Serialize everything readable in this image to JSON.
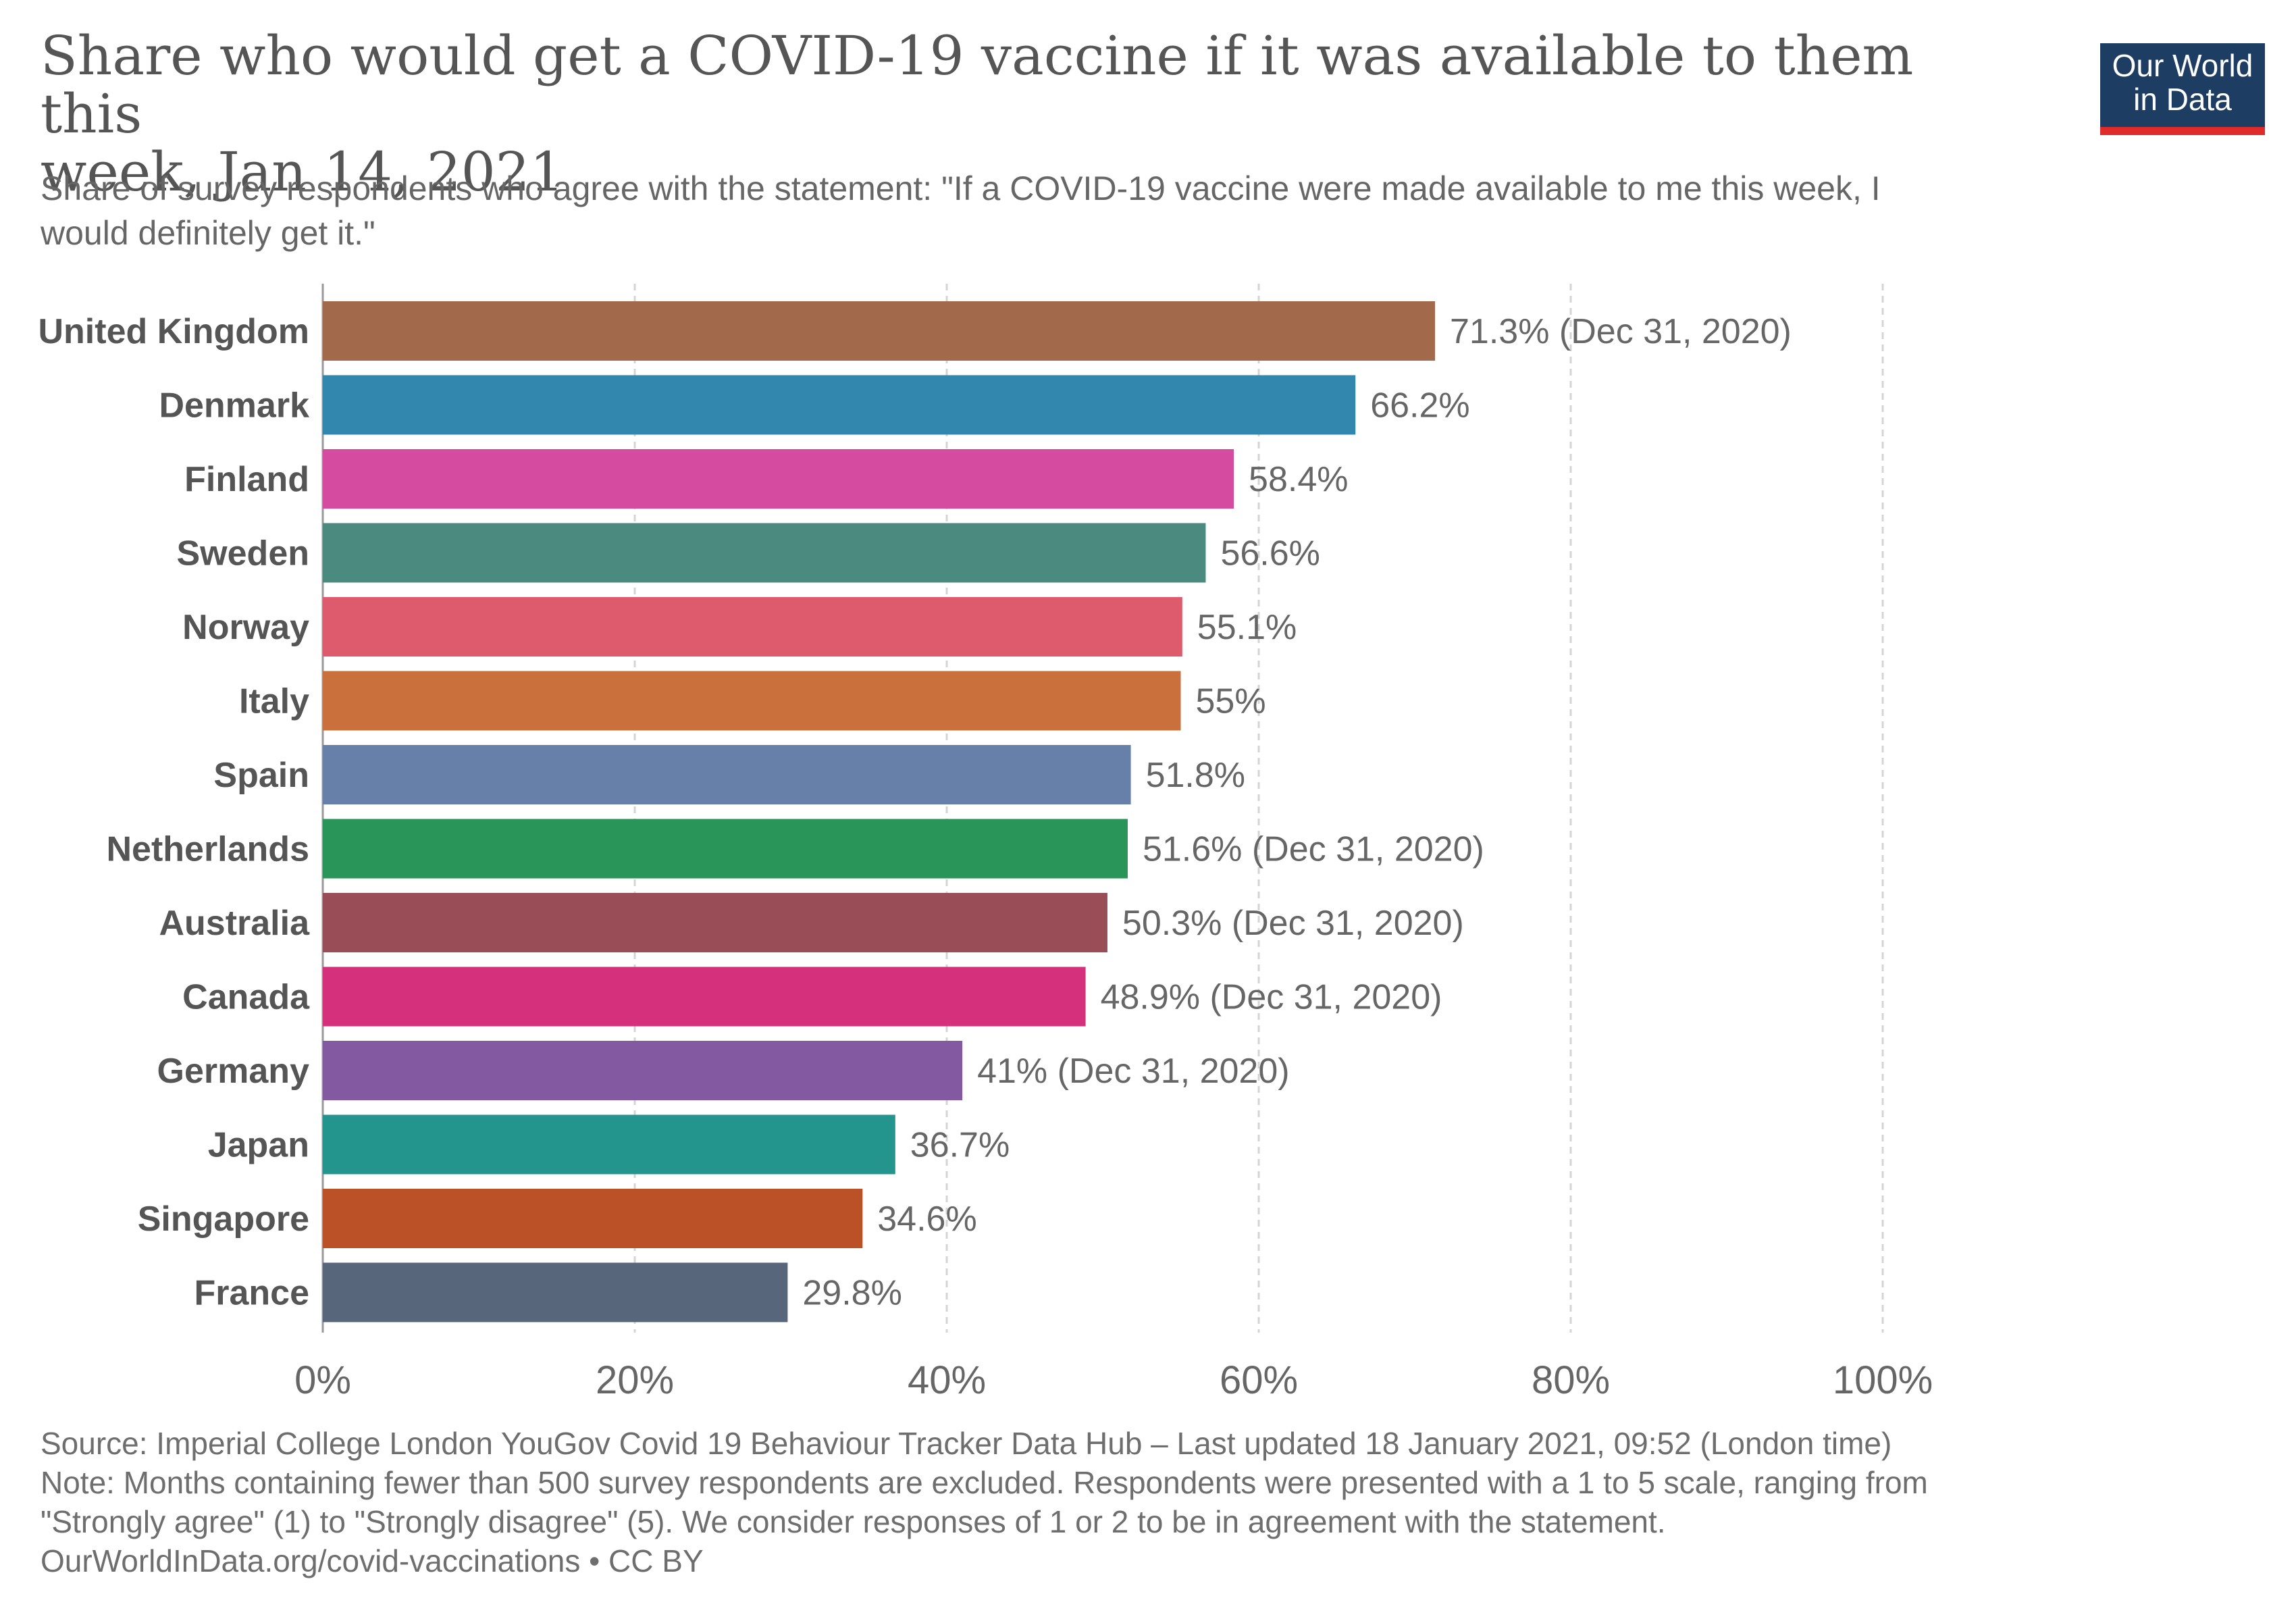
{
  "header": {
    "title_line1": "Share who would get a COVID-19 vaccine if it was available to them this",
    "title_line2": "week, Jan 14, 2021",
    "subtitle_line1": "Share of survey respondents who agree with the statement: \"If a COVID-19 vaccine were made available to me this week, I",
    "subtitle_line2": "would definitely get it.\""
  },
  "logo": {
    "line1": "Our World",
    "line2": "in Data",
    "background": "#1d3d63",
    "accent": "#e02b2b"
  },
  "chart_data": {
    "type": "bar",
    "orientation": "horizontal",
    "xlim": [
      0,
      100
    ],
    "grid": true,
    "x_ticks": [
      "0%",
      "20%",
      "40%",
      "60%",
      "80%",
      "100%"
    ],
    "x_tick_values": [
      0,
      20,
      40,
      60,
      80,
      100
    ],
    "bars": [
      {
        "country": "United Kingdom",
        "value": 71.3,
        "label": "71.3% (Dec 31, 2020)",
        "color": "#a2694a"
      },
      {
        "country": "Denmark",
        "value": 66.2,
        "label": "66.2%",
        "color": "#3187ad"
      },
      {
        "country": "Finland",
        "value": 58.4,
        "label": "58.4%",
        "color": "#d54b9f"
      },
      {
        "country": "Sweden",
        "value": 56.6,
        "label": "56.6%",
        "color": "#4b8a7e"
      },
      {
        "country": "Norway",
        "value": 55.1,
        "label": "55.1%",
        "color": "#dd5b6c"
      },
      {
        "country": "Italy",
        "value": 55,
        "label": "55%",
        "color": "#c9703c"
      },
      {
        "country": "Spain",
        "value": 51.8,
        "label": "51.8%",
        "color": "#6780a9"
      },
      {
        "country": "Netherlands",
        "value": 51.6,
        "label": "51.6% (Dec 31, 2020)",
        "color": "#2a9558"
      },
      {
        "country": "Australia",
        "value": 50.3,
        "label": "50.3% (Dec 31, 2020)",
        "color": "#994e57"
      },
      {
        "country": "Canada",
        "value": 48.9,
        "label": "48.9% (Dec 31, 2020)",
        "color": "#d4307c"
      },
      {
        "country": "Germany",
        "value": 41,
        "label": "41% (Dec 31, 2020)",
        "color": "#835aa2"
      },
      {
        "country": "Japan",
        "value": 36.7,
        "label": "36.7%",
        "color": "#23958d"
      },
      {
        "country": "Singapore",
        "value": 34.6,
        "label": "34.6%",
        "color": "#bb5127"
      },
      {
        "country": "France",
        "value": 29.8,
        "label": "29.8%",
        "color": "#58667c"
      }
    ]
  },
  "footer": {
    "source": "Source: Imperial College London YouGov Covid 19 Behaviour Tracker Data Hub – Last updated 18 January 2021, 09:52 (London time)",
    "note_line1": "Note: Months containing fewer than 500 survey respondents are excluded. Respondents were presented with a 1 to 5 scale, ranging from",
    "note_line2": "\"Strongly agree\" (1) to \"Strongly disagree\" (5). We consider responses of 1 or 2 to be in agreement with the statement.",
    "url": "OurWorldInData.org/covid-vaccinations • CC BY"
  }
}
